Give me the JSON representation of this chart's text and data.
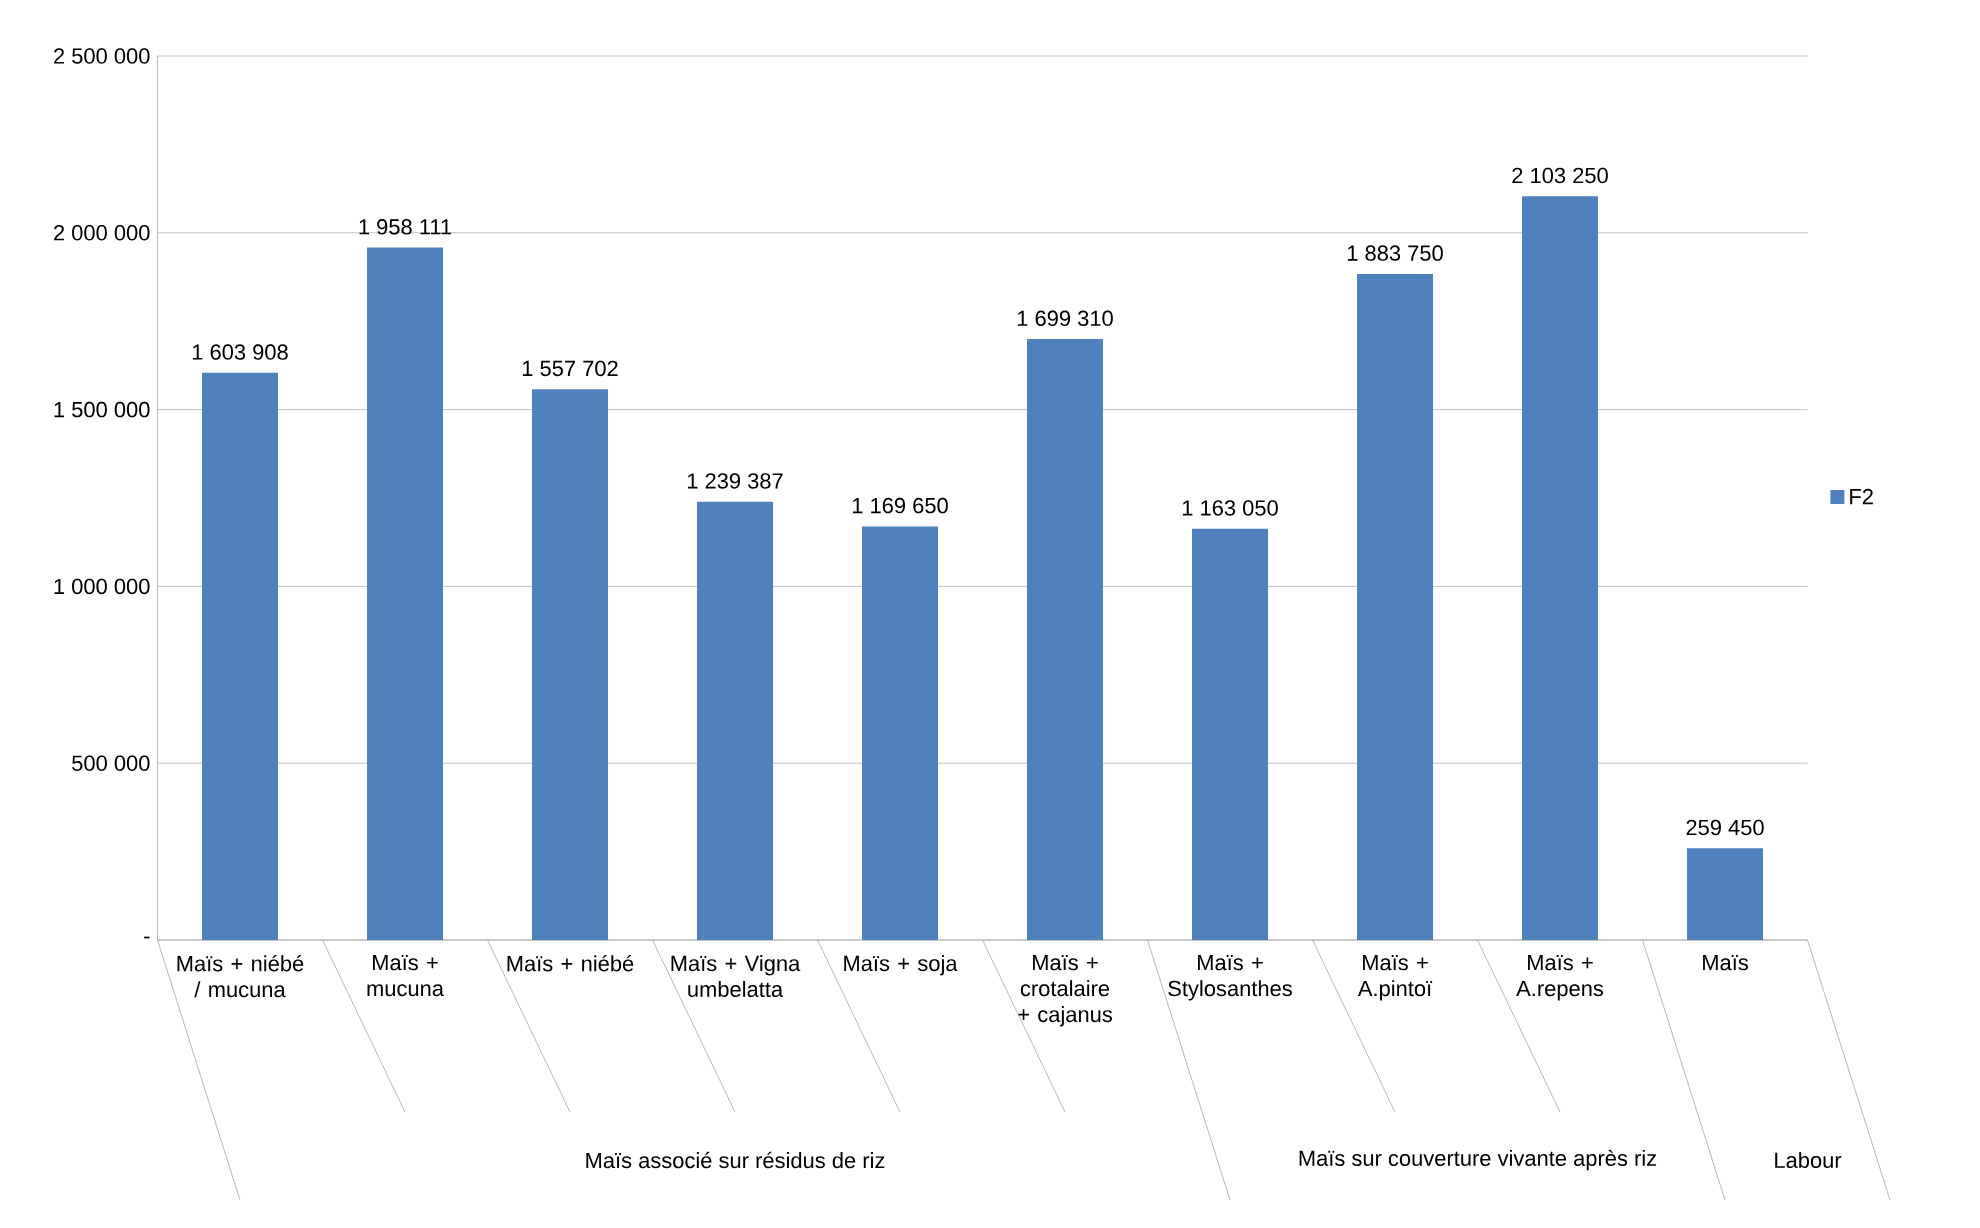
{
  "chart_data": {
    "type": "bar",
    "categories": [
      "Maïs + niébé / mucuna",
      "Maïs + mucuna",
      "Maïs + niébé",
      "Maïs + Vigna umbelatta",
      "Maïs + soja",
      "Maïs + crotalaire + cajanus",
      "Maïs + Stylosanthes",
      "Maïs + A.pintoï",
      "Maïs + A.repens",
      "Maïs"
    ],
    "series": [
      {
        "name": "F2",
        "color": "#4f81bd",
        "values": [
          1603908,
          1958111,
          1557702,
          1239387,
          1169650,
          1699310,
          1163050,
          1883750,
          2103250,
          259450
        ],
        "value_labels": [
          "1 603 908",
          "1 958 111",
          "1 557 702",
          "1 239 387",
          "1 169 650",
          "1 699 310",
          "1 163 050",
          "1 883 750",
          "2 103 250",
          "259 450"
        ]
      }
    ],
    "ylim": [
      0,
      2500000
    ],
    "yticks": [
      {
        "value": 0,
        "label": "-"
      },
      {
        "value": 500000,
        "label": "500 000"
      },
      {
        "value": 1000000,
        "label": "1 000 000"
      },
      {
        "value": 1500000,
        "label": "1 500 000"
      },
      {
        "value": 2000000,
        "label": "2 000 000"
      },
      {
        "value": 2500000,
        "label": "2 500 000"
      }
    ],
    "annotations": [
      "Maïs associé sur résidus de riz",
      "Maïs sur couverture vivante après riz",
      "Labour"
    ],
    "grid": "y",
    "legend": "right"
  }
}
